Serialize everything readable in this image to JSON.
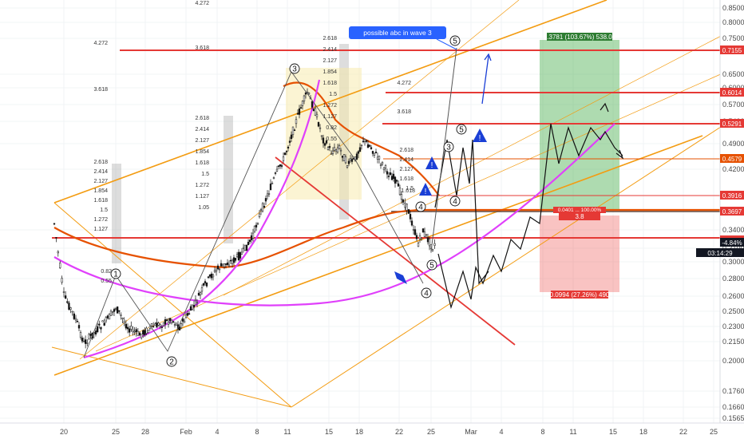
{
  "chart_data": {
    "type": "candlestick",
    "y_axis": {
      "ticks": [
        "0.8500",
        "0.8000",
        "0.7500",
        "0.6500",
        "0.6000",
        "0.5700",
        "0.5400",
        "0.4900",
        "0.4200",
        "0.3400",
        "0.3100",
        "0.3000",
        "0.2800",
        "0.2600",
        "0.2500",
        "0.2300",
        "0.2150",
        "0.2000",
        "0.1760",
        "0.1660",
        "0.1565"
      ],
      "price_tags": [
        {
          "label": "0.7155",
          "color": "#e53935"
        },
        {
          "label": "0.6014",
          "color": "#e53935"
        },
        {
          "label": "0.5291",
          "color": "#e53935"
        },
        {
          "label": "0.4579",
          "color": "#e65100"
        },
        {
          "label": "0.3916",
          "color": "#e53935"
        },
        {
          "label": "0.3697",
          "color": "#e53935"
        },
        {
          "label": "0.3294",
          "color": "#e53935"
        },
        {
          "label": "-4.84%",
          "color": "#131722"
        },
        {
          "label": "03:14:29",
          "color": "#131722"
        }
      ]
    },
    "x_axis": {
      "ticks": [
        "20",
        "25",
        "28",
        "Feb",
        "4",
        "8",
        "11",
        "15",
        "18",
        "22",
        "25",
        "Mar",
        "4",
        "8",
        "11",
        "15",
        "18",
        "22",
        "25"
      ]
    },
    "annotations": {
      "callout": "possible abc in wave 3",
      "long_target": "0.3781 (103.67%) 538.04",
      "long_stop": "0.0994 (27.26%) 490",
      "entry_top": "0.0401 ... 100.00%",
      "entry_ratio": "3.8",
      "waves": [
        "1",
        "2",
        "3",
        "4",
        "5",
        "3",
        "4",
        "5",
        "4",
        "5"
      ]
    },
    "fib_levels": {
      "left_block": [
        "2.618",
        "2.414",
        "2.127",
        "1.854",
        "1.618",
        "1.5",
        "1.272",
        "1.127"
      ],
      "left_block_lower": [
        "0.82",
        "0.55"
      ],
      "mid_block_a": [
        "2.618",
        "2.414",
        "2.127",
        "1.854",
        "1.618",
        "1.5",
        "1.272",
        "1.127",
        "1.05"
      ],
      "mid_block_b": [
        "2.618",
        "2.414",
        "2.127",
        "1.854",
        "1.618",
        "1.5",
        "1.272",
        "1.127",
        "0.82",
        "0.55"
      ],
      "left_top": [
        "4.272",
        "3.618"
      ],
      "mid_top": [
        "4.272",
        "3.618"
      ],
      "right_top": [
        "4.272",
        "3.618"
      ],
      "right_block": [
        "2.618",
        "2.414",
        "2.127",
        "1.618",
        "1.5"
      ],
      "small": [
        "1.618"
      ]
    }
  }
}
